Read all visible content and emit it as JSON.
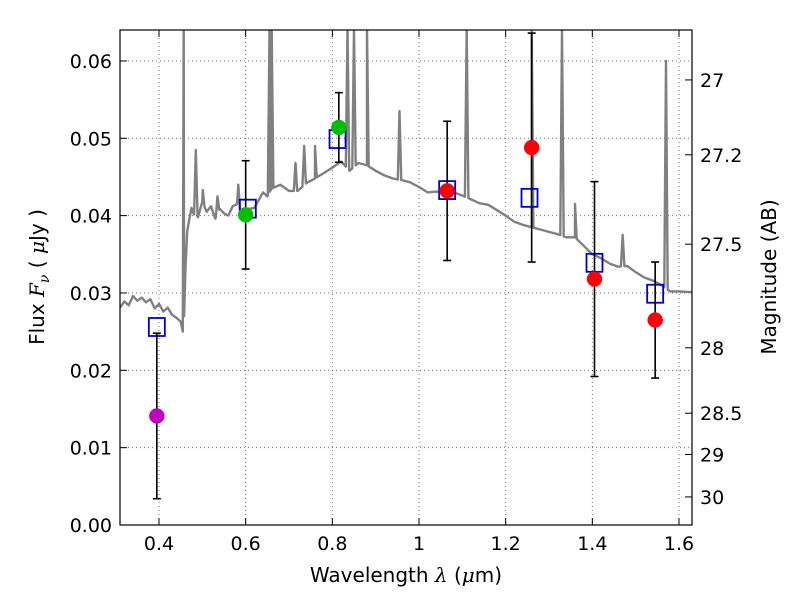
{
  "chart_data": {
    "type": "scatter",
    "xlabel": "Wavelength  λ (μm)",
    "ylabel": "Flux  F_ν  ( μJy )",
    "ylabel_parts": [
      "Flux  ",
      "F",
      "ν",
      "  ( ",
      "μ",
      "Jy )"
    ],
    "xlabel_parts": [
      "Wavelength  ",
      "λ",
      " (",
      "μ",
      "m)"
    ],
    "y2label": "Magnitude (AB)",
    "xlim": [
      0.31,
      1.63
    ],
    "ylim": [
      0.0,
      0.064
    ],
    "grid": true,
    "x_ticks": [
      0.4,
      0.6,
      0.8,
      1.0,
      1.2,
      1.4,
      1.6
    ],
    "x_tick_labels": [
      "0.4",
      "0.6",
      "0.8",
      "1",
      "1.2",
      "1.4",
      "1.6"
    ],
    "y_ticks": [
      0.0,
      0.01,
      0.02,
      0.03,
      0.04,
      0.05,
      0.06
    ],
    "y_tick_labels": [
      "0.00",
      "0.01",
      "0.02",
      "0.03",
      "0.04",
      "0.05",
      "0.06"
    ],
    "y2_ticks": [
      27,
      27.2,
      27.5,
      28,
      28.5,
      29,
      30
    ],
    "y2_tick_labels": [
      "27",
      "27.2",
      "27.5",
      "28",
      "28.5",
      "29",
      "30"
    ],
    "observed": [
      {
        "x": 0.395,
        "y": 0.0141,
        "err": 0.0107,
        "color": "#bf00bf"
      },
      {
        "x": 0.6,
        "y": 0.0401,
        "err": 0.007,
        "color": "#00bf00"
      },
      {
        "x": 0.815,
        "y": 0.0514,
        "err": 0.0045,
        "color": "#00bf00"
      },
      {
        "x": 1.065,
        "y": 0.0432,
        "err": 0.009,
        "color": "#ff0000"
      },
      {
        "x": 1.26,
        "y": 0.0488,
        "err": 0.0148,
        "color": "#ff0000"
      },
      {
        "x": 1.405,
        "y": 0.0318,
        "err": 0.0126,
        "color": "#ff0000"
      },
      {
        "x": 1.545,
        "y": 0.0265,
        "err": 0.0075,
        "color": "#ff0000"
      }
    ],
    "model": [
      {
        "x": 0.395,
        "y": 0.0256
      },
      {
        "x": 0.605,
        "y": 0.0409
      },
      {
        "x": 0.812,
        "y": 0.0499
      },
      {
        "x": 1.065,
        "y": 0.0433
      },
      {
        "x": 1.255,
        "y": 0.0423
      },
      {
        "x": 1.405,
        "y": 0.0339
      },
      {
        "x": 1.545,
        "y": 0.0299
      }
    ],
    "spectrum": {
      "x": [
        0.31,
        0.32,
        0.33,
        0.34,
        0.35,
        0.36,
        0.37,
        0.38,
        0.39,
        0.4,
        0.41,
        0.42,
        0.43,
        0.44,
        0.45,
        0.455,
        0.458,
        0.461,
        0.465,
        0.47,
        0.475,
        0.48,
        0.49,
        0.5,
        0.51,
        0.52,
        0.53,
        0.54,
        0.55,
        0.56,
        0.57,
        0.58,
        0.59,
        0.6,
        0.62,
        0.64,
        0.65,
        0.66,
        0.68,
        0.7,
        0.72,
        0.74,
        0.76,
        0.78,
        0.8,
        0.82,
        0.84,
        0.86,
        0.88,
        0.9,
        0.92,
        0.94,
        0.96,
        0.98,
        1.0,
        1.02,
        1.04,
        1.06,
        1.08,
        1.1,
        1.12,
        1.14,
        1.16,
        1.18,
        1.2,
        1.22,
        1.24,
        1.26,
        1.28,
        1.3,
        1.32,
        1.34,
        1.36,
        1.38,
        1.4,
        1.42,
        1.44,
        1.46,
        1.48,
        1.5,
        1.52,
        1.54,
        1.56,
        1.58,
        1.6,
        1.63
      ],
      "y": [
        0.0281,
        0.0289,
        0.0284,
        0.0296,
        0.029,
        0.0294,
        0.0288,
        0.0292,
        0.028,
        0.0286,
        0.0276,
        0.0281,
        0.0272,
        0.0268,
        0.0263,
        0.025,
        0.027,
        0.033,
        0.038,
        0.0395,
        0.041,
        0.0402,
        0.0398,
        0.0418,
        0.0405,
        0.0412,
        0.0396,
        0.0409,
        0.0403,
        0.04,
        0.0412,
        0.0415,
        0.0404,
        0.0408,
        0.041,
        0.043,
        0.0425,
        0.0435,
        0.044,
        0.0432,
        0.0432,
        0.0442,
        0.0448,
        0.0455,
        0.0462,
        0.047,
        0.0458,
        0.0468,
        0.0465,
        0.0458,
        0.0452,
        0.0448,
        0.0446,
        0.0443,
        0.0437,
        0.043,
        0.0431,
        0.043,
        0.043,
        0.0426,
        0.0421,
        0.0416,
        0.0414,
        0.0407,
        0.04,
        0.0392,
        0.0388,
        0.0385,
        0.0382,
        0.0379,
        0.0376,
        0.0372,
        0.0372,
        0.0361,
        0.035,
        0.0345,
        0.0338,
        0.0334,
        0.0335,
        0.0327,
        0.032,
        0.0316,
        0.031,
        0.0302,
        0.0302,
        0.0301
      ]
    },
    "emission_lines": [
      {
        "x": 0.457,
        "peak": 0.064
      },
      {
        "x": 0.485,
        "peak": 0.0485
      },
      {
        "x": 0.501,
        "peak": 0.0433
      },
      {
        "x": 0.535,
        "peak": 0.0425
      },
      {
        "x": 0.583,
        "peak": 0.044
      },
      {
        "x": 0.655,
        "peak": 0.064
      },
      {
        "x": 0.66,
        "peak": 0.064
      },
      {
        "x": 0.715,
        "peak": 0.0468
      },
      {
        "x": 0.735,
        "peak": 0.049
      },
      {
        "x": 0.76,
        "peak": 0.049
      },
      {
        "x": 0.835,
        "peak": 0.064
      },
      {
        "x": 0.85,
        "peak": 0.064
      },
      {
        "x": 0.88,
        "peak": 0.064
      },
      {
        "x": 0.955,
        "peak": 0.0535
      },
      {
        "x": 1.11,
        "peak": 0.064
      },
      {
        "x": 1.26,
        "peak": 0.064
      },
      {
        "x": 1.33,
        "peak": 0.064
      },
      {
        "x": 1.36,
        "peak": 0.0415
      },
      {
        "x": 1.47,
        "peak": 0.0375
      },
      {
        "x": 1.57,
        "peak": 0.06
      }
    ]
  }
}
